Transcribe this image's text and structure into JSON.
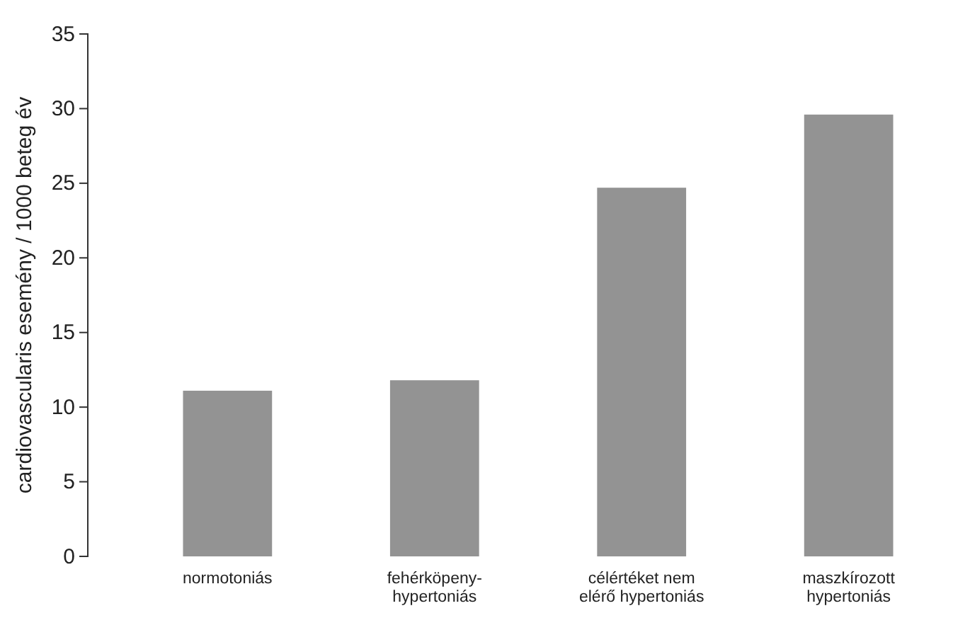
{
  "chart_data": {
    "type": "bar",
    "ylabel": "cardiovascularis esemény / 1000 beteg év",
    "categories": [
      "normotoniás",
      "fehérköpeny-\nhypertoniás",
      "célértéket nem\nelérő hypertoniás",
      "maszkírozott\nhypertoniás"
    ],
    "values": [
      11.1,
      11.8,
      24.7,
      29.6
    ],
    "color": "#939393",
    "ylim": [
      0,
      35
    ],
    "yticks": [
      0,
      5,
      10,
      15,
      20,
      25,
      30,
      35
    ],
    "grid": false
  }
}
